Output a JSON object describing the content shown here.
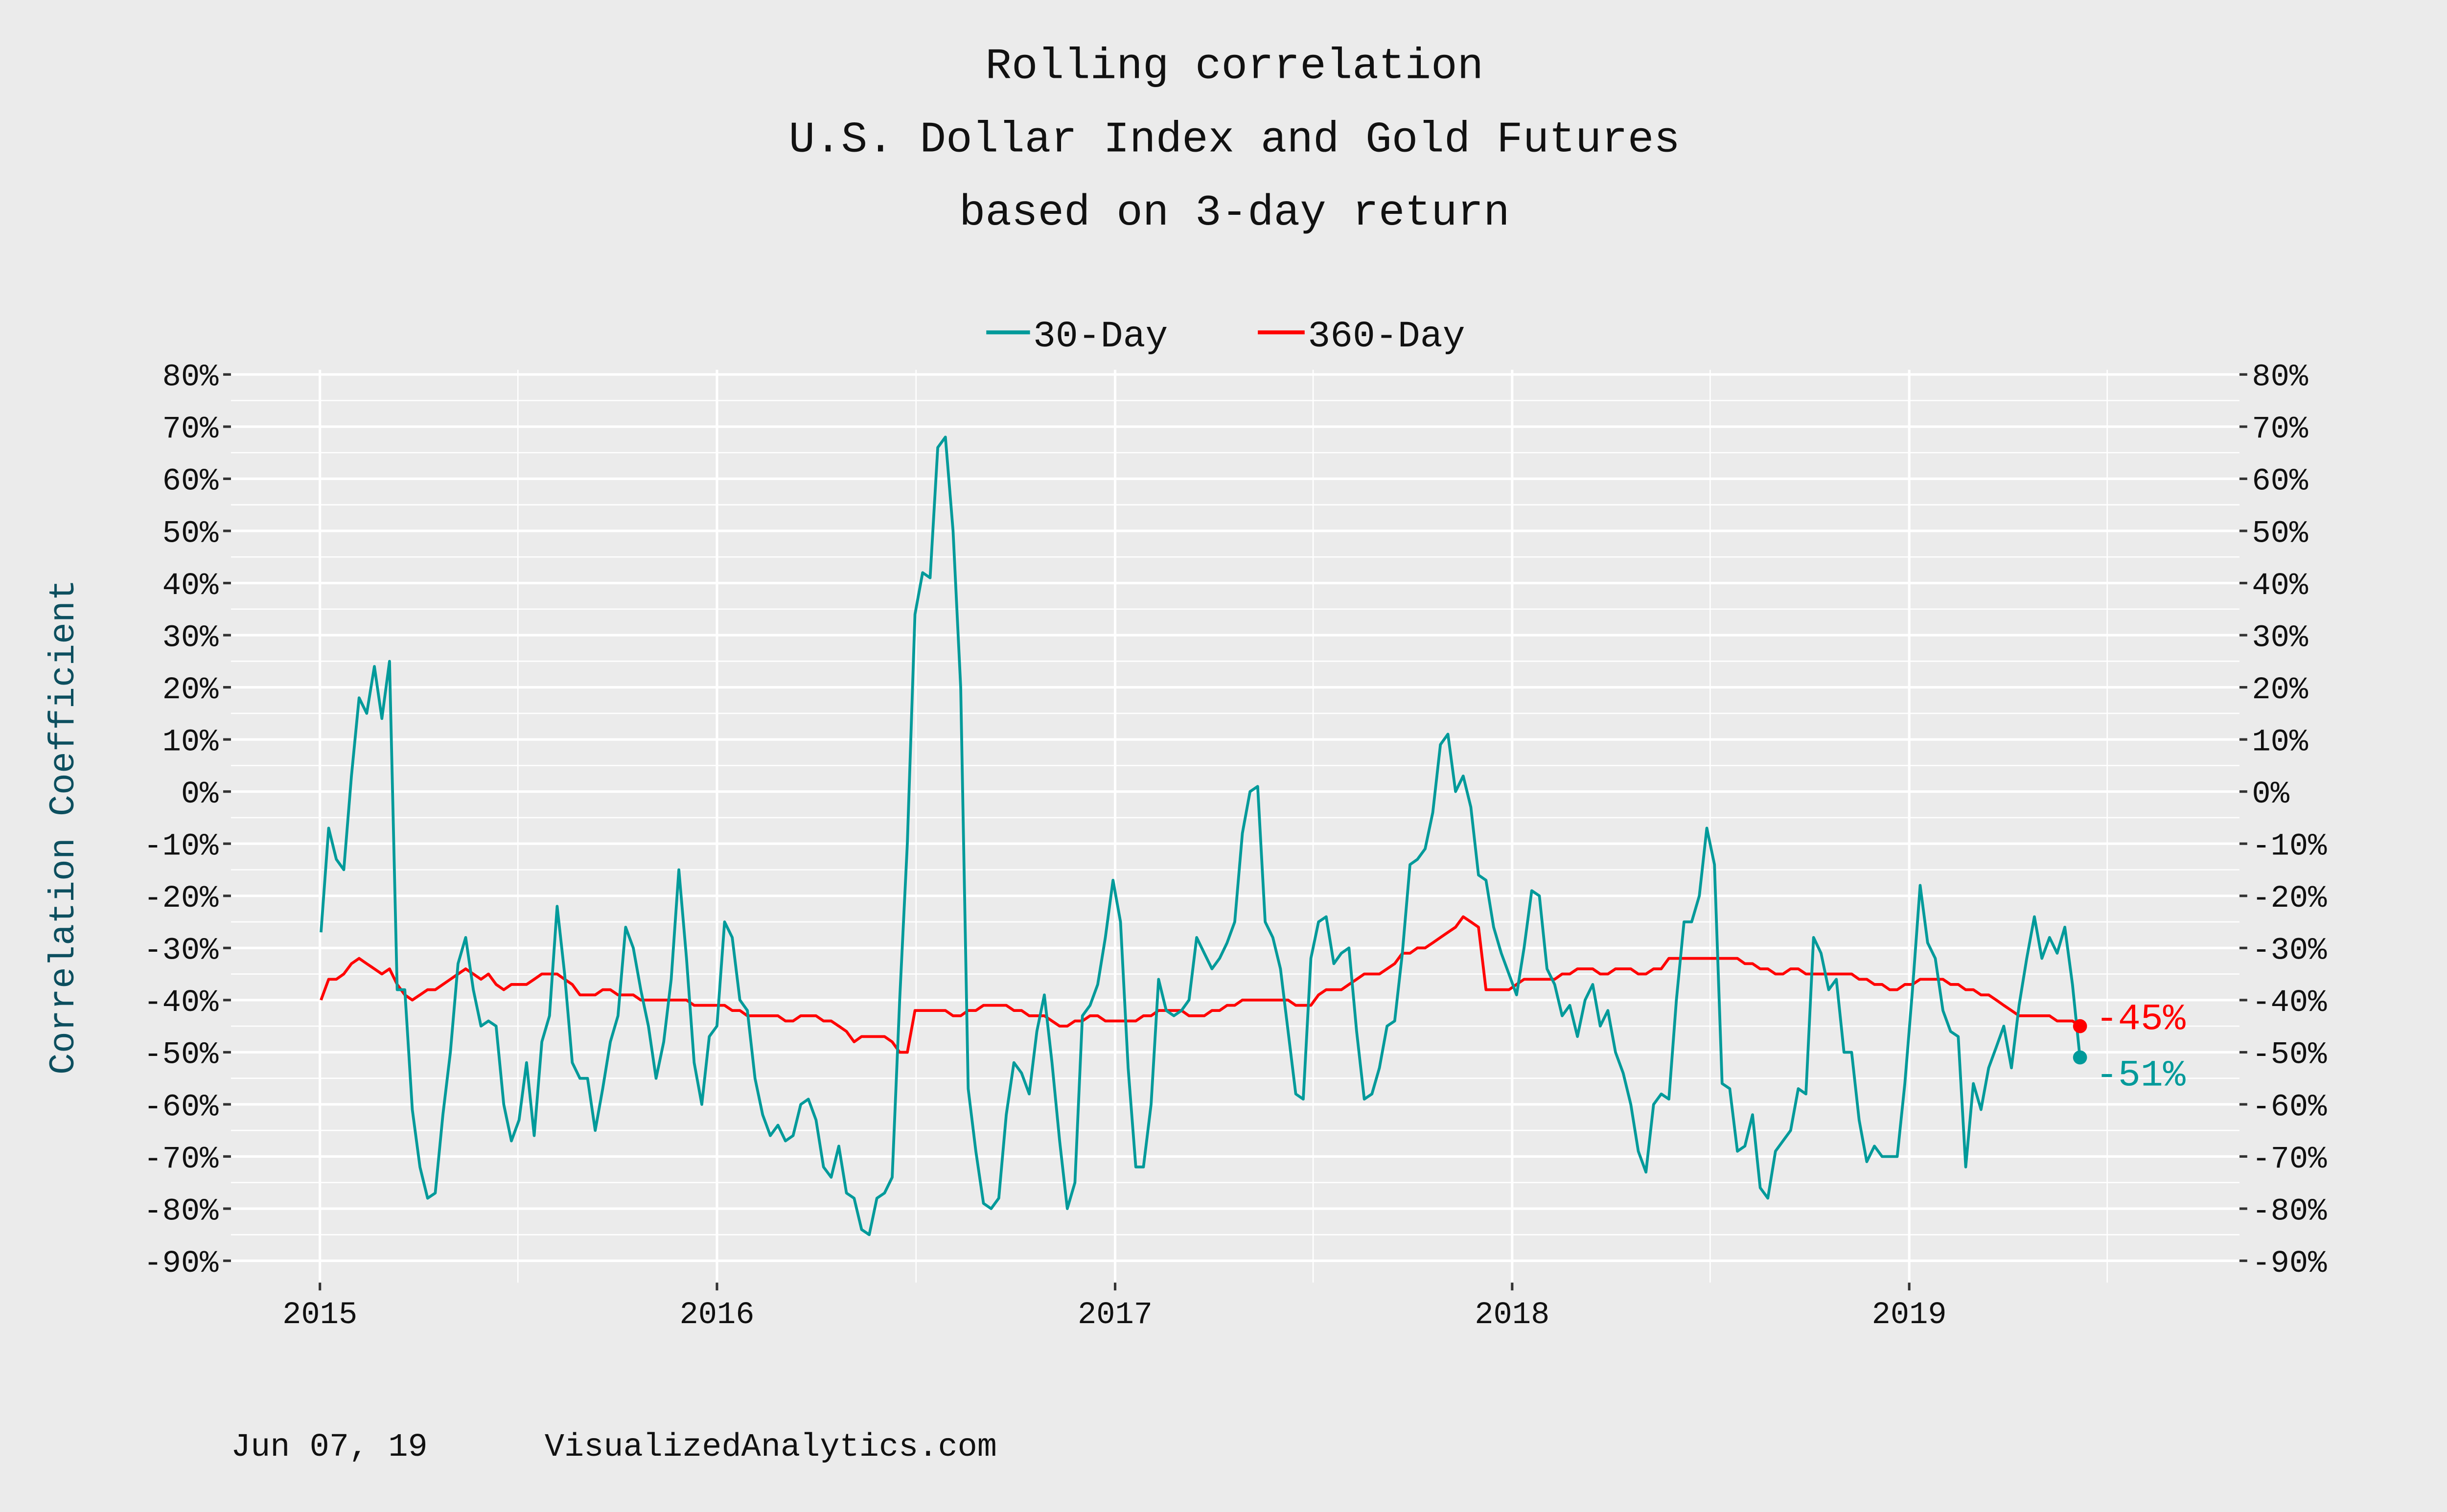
{
  "chart_data": {
    "type": "line",
    "title": [
      "Rolling correlation",
      "U.S. Dollar Index and Gold Futures",
      "based on 3-day return"
    ],
    "ylabel": "Correlation Coefficient",
    "xlabel": "",
    "ylim": [
      -90,
      80
    ],
    "y_ticks": [
      "80%",
      "70%",
      "60%",
      "50%",
      "40%",
      "30%",
      "20%",
      "10%",
      "0%",
      "-10%",
      "-20%",
      "-30%",
      "-40%",
      "-50%",
      "-60%",
      "-70%",
      "-80%",
      "-90%"
    ],
    "y_tick_values": [
      80,
      70,
      60,
      50,
      40,
      30,
      20,
      10,
      0,
      -10,
      -20,
      -30,
      -40,
      -50,
      -60,
      -70,
      -80,
      -90
    ],
    "x_ticks": [
      "2015",
      "2016",
      "2017",
      "2018",
      "2019"
    ],
    "xlim": [
      "2014-10-15",
      "2019-10-15"
    ],
    "grid": true,
    "secondary_y_axis": true,
    "legend_position": "top",
    "colors": {
      "30-Day": "#009a9a",
      "360-Day": "#ff0000",
      "ylabel": "#0d4f5f",
      "background": "#ebebeb",
      "grid": "#ffffff"
    },
    "dates": [
      "2015-01-02",
      "2015-01-09",
      "2015-01-16",
      "2015-01-23",
      "2015-01-30",
      "2015-02-06",
      "2015-02-13",
      "2015-02-20",
      "2015-02-27",
      "2015-03-06",
      "2015-03-13",
      "2015-03-20",
      "2015-03-27",
      "2015-04-03",
      "2015-04-10",
      "2015-04-17",
      "2015-04-24",
      "2015-05-01",
      "2015-05-08",
      "2015-05-15",
      "2015-05-22",
      "2015-05-29",
      "2015-06-05",
      "2015-06-12",
      "2015-06-19",
      "2015-06-26",
      "2015-07-03",
      "2015-07-10",
      "2015-07-17",
      "2015-07-24",
      "2015-07-31",
      "2015-08-07",
      "2015-08-14",
      "2015-08-21",
      "2015-08-28",
      "2015-09-04",
      "2015-09-11",
      "2015-09-18",
      "2015-09-25",
      "2015-10-02",
      "2015-10-09",
      "2015-10-16",
      "2015-10-23",
      "2015-10-30",
      "2015-11-06",
      "2015-11-13",
      "2015-11-20",
      "2015-11-27",
      "2015-12-04",
      "2015-12-11",
      "2015-12-18",
      "2015-12-25",
      "2016-01-01",
      "2016-01-08",
      "2016-01-15",
      "2016-01-22",
      "2016-01-29",
      "2016-02-05",
      "2016-02-12",
      "2016-02-19",
      "2016-02-26",
      "2016-03-04",
      "2016-03-11",
      "2016-03-18",
      "2016-03-25",
      "2016-04-01",
      "2016-04-08",
      "2016-04-15",
      "2016-04-22",
      "2016-04-29",
      "2016-05-06",
      "2016-05-13",
      "2016-05-20",
      "2016-05-27",
      "2016-06-03",
      "2016-06-10",
      "2016-06-17",
      "2016-06-24",
      "2016-07-01",
      "2016-07-08",
      "2016-07-15",
      "2016-07-22",
      "2016-07-29",
      "2016-08-05",
      "2016-08-12",
      "2016-08-19",
      "2016-08-26",
      "2016-09-02",
      "2016-09-09",
      "2016-09-16",
      "2016-09-23",
      "2016-09-30",
      "2016-10-07",
      "2016-10-14",
      "2016-10-21",
      "2016-10-28",
      "2016-11-04",
      "2016-11-11",
      "2016-11-18",
      "2016-11-25",
      "2016-12-02",
      "2016-12-09",
      "2016-12-16",
      "2016-12-23",
      "2016-12-30",
      "2017-01-06",
      "2017-01-13",
      "2017-01-20",
      "2017-01-27",
      "2017-02-03",
      "2017-02-10",
      "2017-02-17",
      "2017-02-24",
      "2017-03-03",
      "2017-03-10",
      "2017-03-17",
      "2017-03-24",
      "2017-03-31",
      "2017-04-07",
      "2017-04-14",
      "2017-04-21",
      "2017-04-28",
      "2017-05-05",
      "2017-05-12",
      "2017-05-19",
      "2017-05-26",
      "2017-06-02",
      "2017-06-09",
      "2017-06-16",
      "2017-06-23",
      "2017-06-30",
      "2017-07-07",
      "2017-07-14",
      "2017-07-21",
      "2017-07-28",
      "2017-08-04",
      "2017-08-11",
      "2017-08-18",
      "2017-08-25",
      "2017-09-01",
      "2017-09-08",
      "2017-09-15",
      "2017-09-22",
      "2017-09-29",
      "2017-10-06",
      "2017-10-13",
      "2017-10-20",
      "2017-10-27",
      "2017-11-03",
      "2017-11-10",
      "2017-11-17",
      "2017-11-24",
      "2017-12-01",
      "2017-12-08",
      "2017-12-15",
      "2017-12-22",
      "2017-12-29",
      "2018-01-05",
      "2018-01-12",
      "2018-01-19",
      "2018-01-26",
      "2018-02-02",
      "2018-02-09",
      "2018-02-16",
      "2018-02-23",
      "2018-03-02",
      "2018-03-09",
      "2018-03-16",
      "2018-03-23",
      "2018-03-30",
      "2018-04-06",
      "2018-04-13",
      "2018-04-20",
      "2018-04-27",
      "2018-05-04",
      "2018-05-11",
      "2018-05-18",
      "2018-05-25",
      "2018-06-01",
      "2018-06-08",
      "2018-06-15",
      "2018-06-22",
      "2018-06-29",
      "2018-07-06",
      "2018-07-13",
      "2018-07-20",
      "2018-07-27",
      "2018-08-03",
      "2018-08-10",
      "2018-08-17",
      "2018-08-24",
      "2018-08-31",
      "2018-09-07",
      "2018-09-14",
      "2018-09-21",
      "2018-09-28",
      "2018-10-05",
      "2018-10-12",
      "2018-10-19",
      "2018-10-26",
      "2018-11-02",
      "2018-11-09",
      "2018-11-16",
      "2018-11-23",
      "2018-11-30",
      "2018-12-07",
      "2018-12-14",
      "2018-12-21",
      "2018-12-28",
      "2019-01-04",
      "2019-01-11",
      "2019-01-18",
      "2019-01-25",
      "2019-02-01",
      "2019-02-08",
      "2019-02-15",
      "2019-02-22",
      "2019-03-01",
      "2019-03-08",
      "2019-03-15",
      "2019-03-22",
      "2019-03-29",
      "2019-04-05",
      "2019-04-12",
      "2019-04-19",
      "2019-04-26",
      "2019-05-03",
      "2019-05-10",
      "2019-05-17",
      "2019-05-24",
      "2019-05-31",
      "2019-06-07"
    ],
    "series": [
      {
        "name": "30-Day",
        "color": "#009a9a",
        "end_label": "-51%",
        "values": [
          -27,
          -7,
          -13,
          -15,
          3,
          18,
          15,
          24,
          14,
          25,
          -38,
          -38,
          -61,
          -72,
          -78,
          -77,
          -62,
          -50,
          -33,
          -28,
          -38,
          -45,
          -44,
          -45,
          -60,
          -67,
          -63,
          -52,
          -66,
          -48,
          -43,
          -22,
          -35,
          -52,
          -55,
          -55,
          -65,
          -57,
          -48,
          -43,
          -26,
          -30,
          -38,
          -45,
          -55,
          -48,
          -36,
          -15,
          -32,
          -52,
          -60,
          -47,
          -45,
          -25,
          -28,
          -40,
          -42,
          -55,
          -62,
          -66,
          -64,
          -67,
          -66,
          -60,
          -59,
          -63,
          -72,
          -74,
          -68,
          -77,
          -78,
          -84,
          -85,
          -78,
          -77,
          -74,
          -40,
          -10,
          34,
          42,
          41,
          66,
          68,
          50,
          20,
          -57,
          -69,
          -79,
          -80,
          -78,
          -62,
          -52,
          -54,
          -58,
          -46,
          -39,
          -52,
          -67,
          -80,
          -75,
          -43,
          -41,
          -37,
          -28,
          -17,
          -25,
          -53,
          -72,
          -72,
          -60,
          -36,
          -42,
          -43,
          -42,
          -40,
          -28,
          -31,
          -34,
          -32,
          -29,
          -25,
          -8,
          0,
          1,
          -25,
          -28,
          -34,
          -46,
          -58,
          -59,
          -32,
          -25,
          -24,
          -33,
          -31,
          -30,
          -46,
          -59,
          -58,
          -53,
          -45,
          -44,
          -31,
          -14,
          -13,
          -11,
          -4,
          9,
          11,
          0,
          3,
          -3,
          -16,
          -17,
          -26,
          -31,
          -35,
          -39,
          -30,
          -19,
          -20,
          -34,
          -37,
          -43,
          -41,
          -47,
          -40,
          -37,
          -45,
          -42,
          -50,
          -54,
          -60,
          -69,
          -73,
          -60,
          -58,
          -59,
          -40,
          -25,
          -25,
          -20,
          -7,
          -14,
          -56,
          -57,
          -69,
          -68,
          -62,
          -76,
          -78,
          -69,
          -67,
          -65,
          -57,
          -58,
          -28,
          -31,
          -38,
          -36,
          -50,
          -50,
          -63,
          -71,
          -68,
          -70,
          -70,
          -70,
          -56,
          -38,
          -18,
          -29,
          -32,
          -42,
          -46,
          -47,
          -72,
          -56,
          -61,
          -53,
          -49,
          -45,
          -53,
          -41,
          -32,
          -24,
          -32,
          -28,
          -31,
          -26,
          -37,
          -51
        ]
      },
      {
        "name": "360-Day",
        "color": "#ff0000",
        "end_label": "-45%",
        "values": [
          -40,
          -36,
          -36,
          -35,
          -33,
          -32,
          -33,
          -34,
          -35,
          -34,
          -37,
          -39,
          -40,
          -39,
          -38,
          -38,
          -37,
          -36,
          -35,
          -34,
          -35,
          -36,
          -35,
          -37,
          -38,
          -37,
          -37,
          -37,
          -36,
          -35,
          -35,
          -35,
          -36,
          -37,
          -39,
          -39,
          -39,
          -38,
          -38,
          -39,
          -39,
          -39,
          -40,
          -40,
          -40,
          -40,
          -40,
          -40,
          -40,
          -41,
          -41,
          -41,
          -41,
          -41,
          -42,
          -42,
          -43,
          -43,
          -43,
          -43,
          -43,
          -44,
          -44,
          -43,
          -43,
          -43,
          -44,
          -44,
          -45,
          -46,
          -48,
          -47,
          -47,
          -47,
          -47,
          -48,
          -50,
          -50,
          -42,
          -42,
          -42,
          -42,
          -42,
          -43,
          -43,
          -42,
          -42,
          -41,
          -41,
          -41,
          -41,
          -42,
          -42,
          -43,
          -43,
          -43,
          -44,
          -45,
          -45,
          -44,
          -44,
          -43,
          -43,
          -44,
          -44,
          -44,
          -44,
          -44,
          -43,
          -43,
          -42,
          -42,
          -42,
          -42,
          -43,
          -43,
          -43,
          -42,
          -42,
          -41,
          -41,
          -40,
          -40,
          -40,
          -40,
          -40,
          -40,
          -40,
          -41,
          -41,
          -41,
          -39,
          -38,
          -38,
          -38,
          -37,
          -36,
          -35,
          -35,
          -35,
          -34,
          -33,
          -31,
          -31,
          -30,
          -30,
          -29,
          -28,
          -27,
          -26,
          -24,
          -25,
          -26,
          -38,
          -38,
          -38,
          -38,
          -37,
          -36,
          -36,
          -36,
          -36,
          -36,
          -35,
          -35,
          -34,
          -34,
          -34,
          -35,
          -35,
          -34,
          -34,
          -34,
          -35,
          -35,
          -34,
          -34,
          -32,
          -32,
          -32,
          -32,
          -32,
          -32,
          -32,
          -32,
          -32,
          -32,
          -33,
          -33,
          -34,
          -34,
          -35,
          -35,
          -34,
          -34,
          -35,
          -35,
          -35,
          -35,
          -35,
          -35,
          -35,
          -36,
          -36,
          -37,
          -37,
          -38,
          -38,
          -37,
          -37,
          -36,
          -36,
          -36,
          -36,
          -37,
          -37,
          -38,
          -38,
          -39,
          -39,
          -40,
          -41,
          -42,
          -43,
          -43,
          -43,
          -43,
          -43,
          -44,
          -44,
          -44,
          -45
        ]
      }
    ]
  },
  "footer": {
    "date": "Jun 07, 19",
    "site": "VisualizedAnalytics.com"
  }
}
